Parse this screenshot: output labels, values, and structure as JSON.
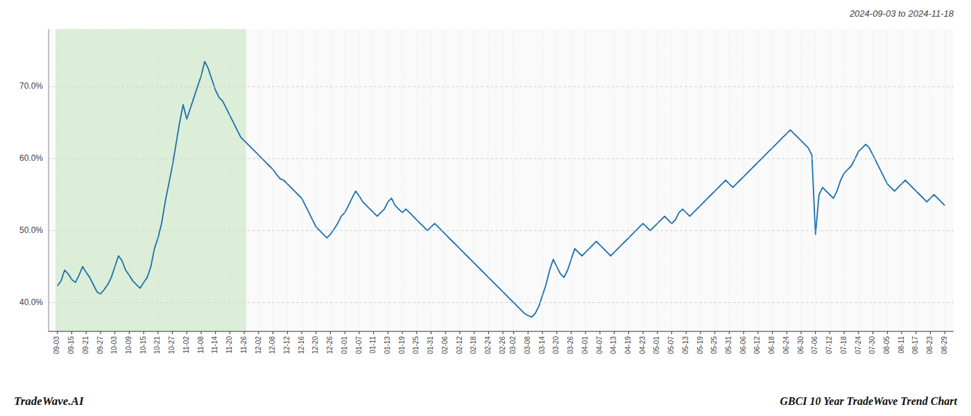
{
  "chart_data": {
    "type": "line",
    "title": "2024-09-03 to 2024-11-18",
    "annotations": [
      "TradeWave.AI",
      "GBCI 10 Year TradeWave Trend Chart"
    ],
    "categories": [
      "09-03",
      null,
      null,
      null,
      "09-15",
      null,
      null,
      null,
      "09-21",
      null,
      null,
      null,
      "09-27",
      null,
      null,
      null,
      "10-03",
      null,
      null,
      null,
      "10-09",
      null,
      null,
      null,
      "10-15",
      null,
      null,
      null,
      "10-21",
      null,
      null,
      null,
      "10-27",
      null,
      null,
      null,
      "11-02",
      null,
      null,
      null,
      "11-08",
      null,
      null,
      null,
      "11-14",
      null,
      null,
      null,
      "11-20",
      null,
      null,
      null,
      "11-26",
      null,
      null,
      null,
      "12-02",
      null,
      null,
      null,
      "12-08",
      null,
      null,
      null,
      "12-12",
      null,
      null,
      null,
      "12-16",
      null,
      null,
      null,
      "12-20",
      null,
      null,
      null,
      "12-26",
      null,
      null,
      null,
      "01-01",
      null,
      null,
      null,
      "01-07",
      null,
      null,
      null,
      "01-11",
      null,
      null,
      null,
      "01-13",
      null,
      null,
      null,
      "01-19",
      null,
      null,
      null,
      "01-25",
      null,
      null,
      null,
      "01-31",
      null,
      null,
      null,
      "02-06",
      null,
      null,
      null,
      "02-12",
      null,
      null,
      null,
      "02-18",
      null,
      null,
      null,
      "02-24",
      null,
      null,
      null,
      "02-26",
      null,
      null,
      "03-02",
      null,
      null,
      null,
      "03-08",
      null,
      null,
      null,
      "03-14",
      null,
      null,
      null,
      "03-20",
      null,
      null,
      null,
      "03-26",
      null,
      null,
      null,
      "04-01",
      null,
      null,
      null,
      "04-07",
      null,
      null,
      null,
      "04-13",
      null,
      null,
      null,
      "04-19",
      null,
      null,
      null,
      "04-23",
      null,
      null,
      null,
      "05-01",
      null,
      null,
      null,
      "05-07",
      null,
      null,
      null,
      "05-13",
      null,
      null,
      null,
      "05-19",
      null,
      null,
      null,
      "05-25",
      null,
      null,
      null,
      "05-31",
      null,
      null,
      null,
      "06-06",
      null,
      null,
      null,
      "06-12",
      null,
      null,
      null,
      "06-18",
      null,
      null,
      null,
      "06-24",
      null,
      null,
      null,
      "06-30",
      null,
      null,
      null,
      "07-06",
      null,
      null,
      null,
      "07-12",
      null,
      null,
      null,
      "07-18",
      null,
      null,
      null,
      "07-24",
      null,
      null,
      null,
      "07-30",
      null,
      null,
      null,
      "08-05",
      null,
      null,
      null,
      "08-11",
      null,
      null,
      null,
      "08-17",
      null,
      null,
      null,
      "08-23",
      null,
      null,
      null,
      "08-29"
    ],
    "values": [
      42.3,
      43.0,
      44.5,
      44.0,
      43.2,
      42.8,
      43.8,
      45.0,
      44.2,
      43.5,
      42.5,
      41.5,
      41.2,
      41.8,
      42.5,
      43.5,
      45.0,
      46.5,
      45.8,
      44.5,
      43.8,
      43.0,
      42.5,
      42.0,
      42.8,
      43.5,
      45.0,
      47.5,
      49.0,
      51.0,
      54.0,
      56.5,
      59.0,
      62.0,
      65.0,
      67.5,
      65.5,
      67.0,
      68.5,
      70.0,
      71.5,
      73.5,
      72.5,
      71.0,
      69.5,
      68.5,
      68.0,
      67.0,
      66.0,
      65.0,
      64.0,
      63.0,
      62.5,
      62.0,
      61.5,
      61.0,
      60.5,
      60.0,
      59.5,
      59.0,
      58.5,
      57.8,
      57.2,
      57.0,
      56.5,
      56.0,
      55.5,
      55.0,
      54.5,
      53.5,
      52.5,
      51.5,
      50.5,
      50.0,
      49.5,
      49.0,
      49.5,
      50.2,
      51.0,
      52.0,
      52.5,
      53.5,
      54.5,
      55.5,
      54.8,
      54.0,
      53.5,
      53.0,
      52.5,
      52.0,
      52.5,
      53.0,
      54.0,
      54.5,
      53.5,
      53.0,
      52.5,
      53.0,
      52.5,
      52.0,
      51.5,
      51.0,
      50.5,
      50.0,
      50.5,
      51.0,
      50.5,
      50.0,
      49.5,
      49.0,
      48.5,
      48.0,
      47.5,
      47.0,
      46.5,
      46.0,
      45.5,
      45.0,
      44.5,
      44.0,
      43.5,
      43.0,
      42.5,
      42.0,
      41.5,
      41.0,
      40.5,
      40.0,
      39.5,
      39.0,
      38.5,
      38.2,
      38.0,
      38.5,
      39.5,
      41.0,
      42.5,
      44.5,
      46.0,
      45.0,
      44.0,
      43.5,
      44.5,
      46.0,
      47.5,
      47.0,
      46.5,
      47.0,
      47.5,
      48.0,
      48.5,
      48.0,
      47.5,
      47.0,
      46.5,
      47.0,
      47.5,
      48.0,
      48.5,
      49.0,
      49.5,
      50.0,
      50.5,
      51.0,
      50.5,
      50.0,
      50.5,
      51.0,
      51.5,
      52.0,
      51.5,
      51.0,
      51.5,
      52.5,
      53.0,
      52.5,
      52.0,
      52.5,
      53.0,
      53.5,
      54.0,
      54.5,
      55.0,
      55.5,
      56.0,
      56.5,
      57.0,
      56.5,
      56.0,
      56.5,
      57.0,
      57.5,
      58.0,
      58.5,
      59.0,
      59.5,
      60.0,
      60.5,
      61.0,
      61.5,
      62.0,
      62.5,
      63.0,
      63.5,
      64.0,
      63.5,
      63.0,
      62.5,
      62.0,
      61.5,
      60.5,
      49.5,
      55.0,
      56.0,
      55.5,
      55.0,
      54.5,
      55.5,
      57.0,
      58.0,
      58.5,
      59.0,
      60.0,
      61.0,
      61.5,
      62.0,
      61.5,
      60.5,
      59.5,
      58.5,
      57.5,
      56.5,
      56.0,
      55.5,
      56.0,
      56.5,
      57.0,
      56.5,
      56.0,
      55.5,
      55.0,
      54.5,
      54.0,
      54.5,
      55.0,
      54.5,
      54.0,
      53.5
    ],
    "color": "#1a6faf",
    "ylim": [
      36,
      78
    ],
    "yticks": [
      {
        "value": 40,
        "label": "40.0%"
      },
      {
        "value": 50,
        "label": "50.0%"
      },
      {
        "value": 60,
        "label": "60.0%"
      },
      {
        "value": 70,
        "label": "70.0%"
      }
    ],
    "grid": true,
    "shaded_region": {
      "from": "09-03",
      "to": "11-26",
      "color": "#c8e6c0"
    }
  }
}
